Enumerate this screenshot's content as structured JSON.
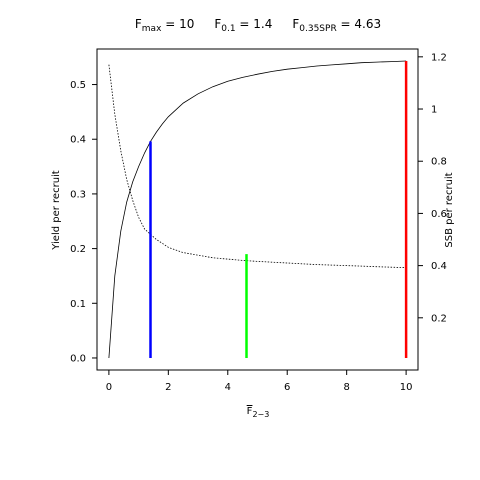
{
  "chart_data": {
    "type": "line",
    "title_parts": [
      {
        "base": "F",
        "sub": "max",
        "value": " = 10"
      },
      {
        "base": "F",
        "sub": "0.1",
        "value": " = 1.4"
      },
      {
        "base": "F",
        "sub": "0.35SPR",
        "value": " = 4.63"
      }
    ],
    "xlabel": {
      "base": "F",
      "sub": "2−3",
      "overline": true
    },
    "ylabel": "Yield per recruit",
    "y2label": "SSB per recruit",
    "xlim": [
      -0.4,
      10.4
    ],
    "ylim": [
      -0.022,
      0.565
    ],
    "y2lim": [
      0.0,
      1.23
    ],
    "x_ticks": [
      "0",
      "2",
      "4",
      "6",
      "8",
      "10"
    ],
    "y_ticks": [
      "0.0",
      "0.1",
      "0.2",
      "0.3",
      "0.4",
      "0.5"
    ],
    "y2_ticks": [
      "0.2",
      "0.4",
      "0.6",
      "0.8",
      "1",
      "1.2"
    ],
    "grid": false,
    "series": [
      {
        "axis": "left",
        "style": "solid",
        "color": "#000000",
        "x": [
          0,
          0.2,
          0.4,
          0.6,
          0.8,
          1.0,
          1.2,
          1.4,
          1.6,
          1.8,
          2.0,
          2.5,
          3.0,
          3.5,
          4.0,
          4.5,
          5.0,
          5.5,
          6.0,
          6.5,
          7.0,
          7.5,
          8.0,
          8.5,
          9.0,
          9.5,
          10.0
        ],
        "y": [
          0.0,
          0.15,
          0.232,
          0.285,
          0.322,
          0.35,
          0.375,
          0.396,
          0.413,
          0.428,
          0.441,
          0.466,
          0.483,
          0.496,
          0.506,
          0.513,
          0.519,
          0.524,
          0.528,
          0.531,
          0.534,
          0.536,
          0.538,
          0.54,
          0.541,
          0.542,
          0.543
        ]
      },
      {
        "axis": "right",
        "style": "dotted",
        "color": "#000000",
        "x": [
          0,
          0.2,
          0.4,
          0.6,
          0.8,
          1.0,
          1.2,
          1.4,
          1.6,
          1.8,
          2.0,
          2.5,
          3.0,
          3.5,
          4.0,
          4.5,
          5.0,
          5.5,
          6.0,
          6.5,
          7.0,
          7.5,
          8.0,
          8.5,
          9.0,
          9.5,
          10.0
        ],
        "y": [
          1.17,
          0.98,
          0.84,
          0.73,
          0.65,
          0.585,
          0.54,
          0.52,
          0.5,
          0.485,
          0.47,
          0.45,
          0.44,
          0.43,
          0.425,
          0.42,
          0.416,
          0.413,
          0.41,
          0.407,
          0.404,
          0.402,
          0.4,
          0.398,
          0.396,
          0.394,
          0.392
        ]
      }
    ],
    "reference_lines": [
      {
        "name": "F0.1",
        "x": 1.4,
        "y_top": 0.396,
        "color": "#0000ff"
      },
      {
        "name": "F0.35SPR",
        "x": 4.63,
        "y_top": 0.19,
        "color": "#00ff00"
      },
      {
        "name": "Fmax",
        "x": 10,
        "y_top": 0.543,
        "color": "#ff0000"
      }
    ]
  }
}
